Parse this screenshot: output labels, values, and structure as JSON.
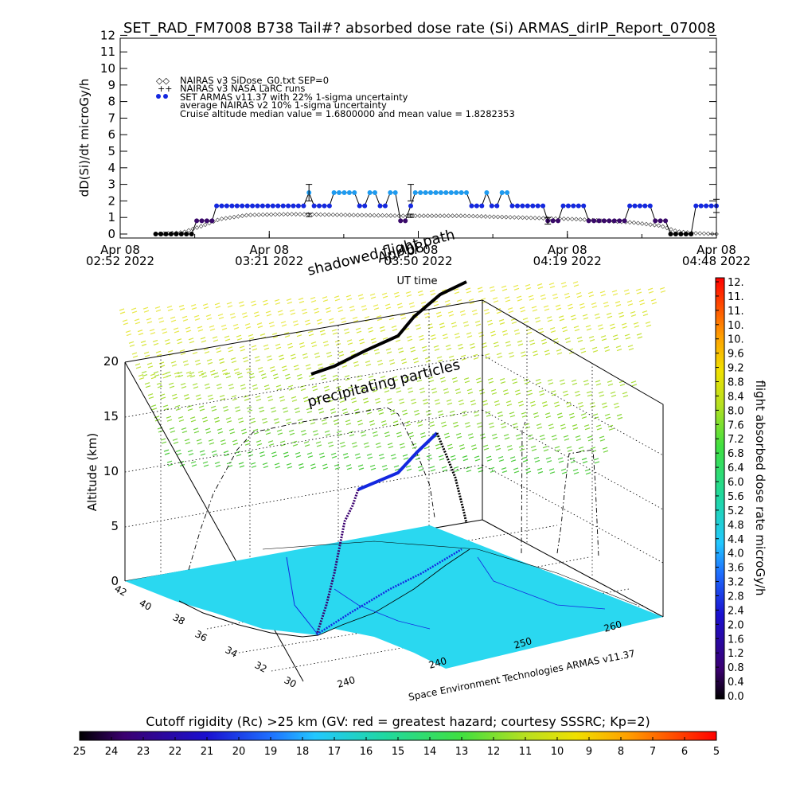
{
  "chart_data": [
    {
      "type": "line",
      "title": "SET_RAD_FM7008  B738 Tail#? absorbed dose rate (Si) ARMAS_dirIP_Report_07008",
      "xlabel": "UT time",
      "ylabel": "dD(Si)/dt microGy/h",
      "ylim": [
        0,
        12
      ],
      "yticks": [
        "0",
        "1",
        "2",
        "3",
        "4",
        "5",
        "6",
        "7",
        "8",
        "9",
        "10",
        "11",
        "12"
      ],
      "xlim": [
        "2022-04-08 02:52",
        "2022-04-08 04:48"
      ],
      "xticks": [
        {
          "line1": "Apr 08",
          "line2": "02:52 2022",
          "t": 0
        },
        {
          "line1": "Apr 08",
          "line2": "03:21 2022",
          "t": 29
        },
        {
          "line1": "Apr 08",
          "line2": "03:50 2022",
          "t": 58
        },
        {
          "line1": "Apr 08",
          "line2": "04:19 2022",
          "t": 87
        },
        {
          "line1": "Apr 08",
          "line2": "04:48 2022",
          "t": 116
        }
      ],
      "legend": {
        "lines": [
          "NAIRAS v3 SiDose_G0.txt SEP=0",
          "NAIRAS v3 NASA LaRC runs",
          "SET ARMAS v11.37 with 22% 1-sigma uncertainty",
          "average NAIRAS v2 10% 1-sigma uncertainty",
          "Cruise altitude median value =   1.6800000 and mean value =    1.8282353"
        ],
        "placement": "top-left"
      },
      "series": [
        {
          "name": "SET ARMAS v11.37 with 22% 1-sigma uncertainty",
          "points": [
            [
              12.5,
              0.0
            ],
            [
              14.3,
              0.0
            ],
            [
              16.1,
              0.0
            ],
            [
              17.9,
              0.0
            ],
            [
              19.7,
              0.0
            ],
            [
              21.5,
              0.0
            ],
            [
              23.3,
              0.0
            ],
            [
              25.1,
              0.0
            ],
            [
              26.9,
              0.8
            ],
            [
              28.7,
              0.8
            ],
            [
              30.5,
              0.8
            ],
            [
              32.3,
              0.8
            ],
            [
              33.9,
              1.7
            ],
            [
              35.7,
              1.7
            ],
            [
              37.5,
              1.7
            ],
            [
              39.3,
              1.7
            ],
            [
              41.1,
              1.7
            ],
            [
              42.9,
              1.7
            ],
            [
              44.7,
              1.7
            ],
            [
              46.5,
              1.7
            ],
            [
              48.3,
              1.7
            ],
            [
              50.1,
              1.7
            ],
            [
              51.9,
              1.7
            ],
            [
              53.7,
              1.7
            ],
            [
              55.5,
              1.7
            ],
            [
              57.3,
              1.7
            ],
            [
              59.1,
              1.7
            ],
            [
              60.9,
              1.7
            ],
            [
              62.7,
              1.7
            ],
            [
              64.5,
              1.7
            ],
            [
              66.4,
              2.5
            ],
            [
              68.2,
              1.7
            ],
            [
              70.0,
              1.7
            ],
            [
              71.8,
              1.7
            ],
            [
              73.6,
              1.7
            ],
            [
              75.2,
              2.5
            ],
            [
              77.0,
              2.5
            ],
            [
              78.8,
              2.5
            ],
            [
              80.6,
              2.5
            ],
            [
              82.4,
              2.5
            ],
            [
              84.2,
              1.7
            ],
            [
              86.0,
              1.7
            ],
            [
              87.8,
              2.5
            ],
            [
              89.6,
              2.5
            ],
            [
              91.4,
              1.7
            ],
            [
              93.2,
              1.7
            ],
            [
              95.0,
              2.5
            ],
            [
              96.8,
              2.5
            ],
            [
              98.6,
              0.8
            ],
            [
              100.3,
              0.8
            ],
            [
              102.2,
              1.7
            ],
            [
              103.8,
              2.5
            ],
            [
              105.6,
              2.5
            ],
            [
              107.4,
              2.5
            ],
            [
              109.2,
              2.5
            ],
            [
              111.0,
              2.5
            ],
            [
              112.8,
              2.5
            ],
            [
              114.6,
              2.5
            ],
            [
              116.4,
              2.5
            ],
            [
              118.2,
              2.5
            ],
            [
              120.0,
              2.5
            ],
            [
              121.8,
              2.5
            ],
            [
              123.6,
              1.7
            ],
            [
              125.4,
              1.7
            ],
            [
              127.2,
              1.7
            ],
            [
              128.9,
              2.5
            ],
            [
              130.7,
              1.7
            ],
            [
              132.5,
              1.7
            ],
            [
              134.3,
              2.5
            ],
            [
              136.1,
              2.5
            ],
            [
              137.9,
              1.7
            ],
            [
              139.7,
              1.7
            ],
            [
              141.5,
              1.7
            ],
            [
              143.3,
              1.7
            ],
            [
              145.1,
              1.7
            ],
            [
              146.9,
              1.7
            ],
            [
              148.7,
              1.7
            ],
            [
              150.4,
              0.8
            ],
            [
              152.2,
              0.8
            ],
            [
              154.0,
              0.8
            ],
            [
              155.8,
              1.7
            ],
            [
              157.6,
              1.7
            ],
            [
              159.4,
              1.7
            ],
            [
              161.2,
              1.7
            ],
            [
              163.0,
              1.7
            ],
            [
              164.8,
              0.8
            ],
            [
              166.6,
              0.8
            ],
            [
              168.4,
              0.8
            ],
            [
              170.2,
              0.8
            ],
            [
              172.0,
              0.8
            ],
            [
              173.8,
              0.8
            ],
            [
              175.6,
              0.8
            ],
            [
              177.4,
              0.8
            ],
            [
              179.2,
              1.7
            ],
            [
              181.0,
              1.7
            ],
            [
              182.8,
              1.7
            ],
            [
              184.6,
              1.7
            ],
            [
              186.4,
              1.7
            ],
            [
              188.2,
              0.8
            ],
            [
              190.0,
              0.8
            ],
            [
              191.8,
              0.8
            ],
            [
              193.6,
              0.0
            ],
            [
              195.4,
              0.0
            ],
            [
              197.2,
              0.0
            ],
            [
              199.0,
              0.0
            ],
            [
              200.8,
              0.0
            ],
            [
              202.5,
              1.7
            ],
            [
              204.3,
              1.7
            ],
            [
              206.1,
              1.7
            ],
            [
              207.9,
              1.7
            ],
            [
              209.7,
              1.7
            ]
          ]
        },
        {
          "name": "NAIRAS v3 SiDose_G0.txt SEP=0",
          "curve": [
            [
              12.5,
              0.0
            ],
            [
              22.0,
              0.1
            ],
            [
              29.0,
              0.5
            ],
            [
              35.0,
              0.9
            ],
            [
              45.0,
              1.15
            ],
            [
              60.0,
              1.2
            ],
            [
              80.0,
              1.15
            ],
            [
              100.0,
              1.1
            ],
            [
              120.0,
              1.1
            ],
            [
              140.0,
              1.0
            ],
            [
              160.0,
              0.9
            ],
            [
              180.0,
              0.7
            ],
            [
              190.0,
              0.5
            ],
            [
              196.0,
              0.15
            ],
            [
              202.0,
              0.05
            ],
            [
              209.7,
              0.0
            ]
          ]
        }
      ],
      "error_bars": [
        {
          "t": 66.4,
          "y": 2.5,
          "low": 2.0,
          "high": 3.0
        },
        {
          "t": 66.4,
          "y": 1.15,
          "low": 1.05,
          "high": 1.25
        },
        {
          "t": 102.2,
          "y": 2.5,
          "low": 2.0,
          "high": 3.0
        },
        {
          "t": 102.2,
          "y": 1.1,
          "low": 1.0,
          "high": 1.2
        },
        {
          "t": 150.4,
          "y": 0.8,
          "low": 0.6,
          "high": 1.0
        },
        {
          "t": 209.7,
          "y": 1.7,
          "low": 1.3,
          "high": 2.1
        }
      ],
      "grid": false
    },
    {
      "type": "scatter",
      "ylabel": "Altitude (km)",
      "zticks": [
        "0",
        "5",
        "10",
        "15",
        "20"
      ],
      "lat_ticks": [
        "42",
        "40",
        "38",
        "36",
        "34",
        "32",
        "30"
      ],
      "lon_ticks": [
        "240",
        "240",
        "250",
        "260"
      ],
      "annotations": [
        "shadowed flight path",
        "Apr 08",
        "precipitating particles",
        "Space Environment Technologies ARMAS v11.37"
      ]
    }
  ],
  "colorbar_right": {
    "label": "flight absorbed dose rate microGy/h",
    "ticks": [
      "12.",
      "11.",
      "11.",
      "10.",
      "10.",
      "9.6",
      "9.2",
      "8.8",
      "8.4",
      "8.0",
      "7.6",
      "7.2",
      "6.8",
      "6.4",
      "6.0",
      "5.6",
      "5.2",
      "4.8",
      "4.4",
      "4.0",
      "3.6",
      "3.2",
      "2.8",
      "2.4",
      "2.0",
      "1.6",
      "1.2",
      "0.8",
      "0.4",
      "0.0"
    ]
  },
  "colorbar_bottom": {
    "title": "Cutoff rigidity (Rc) >25 km (GV: red = greatest hazard; courtesy SSSRC; Kp=2)",
    "ticks": [
      "25",
      "24",
      "23",
      "22",
      "21",
      "20",
      "19",
      "18",
      "17",
      "16",
      "15",
      "14",
      "13",
      "12",
      "11",
      "10",
      "9",
      "8",
      "7",
      "6",
      "5"
    ]
  },
  "colors": {
    "armas_low": "#3a0a6a",
    "armas_mid": "#1428e0",
    "armas_high": "#1e9bf0",
    "map_fill": "#2ad8f0",
    "axis": "#000000"
  }
}
